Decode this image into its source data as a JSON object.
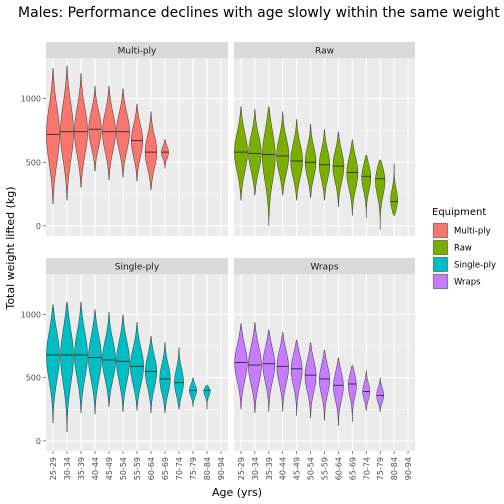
{
  "chart_data": {
    "type": "violin",
    "title": "Males: Performance declines with age slowly within the same weight group",
    "xlabel": "Age (yrs)",
    "ylabel": "Total weight lifted (kg)",
    "categories": [
      "25-29",
      "30-34",
      "35-39",
      "40-44",
      "45-49",
      "50-54",
      "55-59",
      "60-64",
      "65-69",
      "70-74",
      "75-79",
      "80-84",
      "90-94"
    ],
    "ylim": [
      -80,
      1320
    ],
    "yticks": [
      0,
      500,
      1000
    ],
    "grid": true,
    "legend": {
      "title": "Equipment",
      "position": "right",
      "entries": [
        {
          "label": "Multi-ply",
          "color": "#F8766D"
        },
        {
          "label": "Raw",
          "color": "#7CAE00"
        },
        {
          "label": "Single-ply",
          "color": "#00BFC4"
        },
        {
          "label": "Wraps",
          "color": "#C77CFF"
        }
      ]
    },
    "panels": [
      {
        "name": "Multi-ply",
        "color": "#F8766D",
        "violins": [
          {
            "category": "25-29",
            "min": 170,
            "max": 1240,
            "median": 720
          },
          {
            "category": "30-34",
            "min": 200,
            "max": 1260,
            "median": 740
          },
          {
            "category": "35-39",
            "min": 300,
            "max": 1200,
            "median": 740
          },
          {
            "category": "40-44",
            "min": 430,
            "max": 1100,
            "median": 760
          },
          {
            "category": "45-49",
            "min": 360,
            "max": 1100,
            "median": 740
          },
          {
            "category": "50-54",
            "min": 380,
            "max": 1080,
            "median": 740
          },
          {
            "category": "55-59",
            "min": 350,
            "max": 960,
            "median": 670
          },
          {
            "category": "60-64",
            "min": 280,
            "max": 900,
            "median": 580
          },
          {
            "category": "65-69",
            "min": 450,
            "max": 680,
            "median": 580
          }
        ]
      },
      {
        "name": "Raw",
        "color": "#7CAE00",
        "violins": [
          {
            "category": "25-29",
            "min": 200,
            "max": 940,
            "median": 580
          },
          {
            "category": "30-34",
            "min": 240,
            "max": 920,
            "median": 570
          },
          {
            "category": "35-39",
            "min": 0,
            "max": 940,
            "median": 560
          },
          {
            "category": "40-44",
            "min": 240,
            "max": 900,
            "median": 550
          },
          {
            "category": "45-49",
            "min": 200,
            "max": 840,
            "median": 510
          },
          {
            "category": "50-54",
            "min": 220,
            "max": 800,
            "median": 500
          },
          {
            "category": "55-59",
            "min": 200,
            "max": 760,
            "median": 480
          },
          {
            "category": "60-64",
            "min": 150,
            "max": 740,
            "median": 470
          },
          {
            "category": "65-69",
            "min": 80,
            "max": 680,
            "median": 420
          },
          {
            "category": "70-74",
            "min": 60,
            "max": 560,
            "median": 390
          },
          {
            "category": "75-79",
            "min": -30,
            "max": 520,
            "median": 370
          },
          {
            "category": "80-84",
            "min": 80,
            "max": 490,
            "median": 190
          }
        ]
      },
      {
        "name": "Single-ply",
        "color": "#00BFC4",
        "violins": [
          {
            "category": "25-29",
            "min": 140,
            "max": 1080,
            "median": 680
          },
          {
            "category": "30-34",
            "min": 70,
            "max": 1100,
            "median": 680
          },
          {
            "category": "35-39",
            "min": 220,
            "max": 1100,
            "median": 680
          },
          {
            "category": "40-44",
            "min": 210,
            "max": 1040,
            "median": 660
          },
          {
            "category": "45-49",
            "min": 270,
            "max": 1020,
            "median": 640
          },
          {
            "category": "50-54",
            "min": 230,
            "max": 1000,
            "median": 630
          },
          {
            "category": "55-59",
            "min": 240,
            "max": 940,
            "median": 590
          },
          {
            "category": "60-64",
            "min": 220,
            "max": 830,
            "median": 550
          },
          {
            "category": "65-69",
            "min": 220,
            "max": 780,
            "median": 490
          },
          {
            "category": "70-74",
            "min": 250,
            "max": 740,
            "median": 460
          },
          {
            "category": "75-79",
            "min": 270,
            "max": 500,
            "median": 400
          },
          {
            "category": "80-84",
            "min": 250,
            "max": 440,
            "median": 400
          }
        ]
      },
      {
        "name": "Wraps",
        "color": "#C77CFF",
        "violins": [
          {
            "category": "25-29",
            "min": 250,
            "max": 930,
            "median": 620
          },
          {
            "category": "30-34",
            "min": 220,
            "max": 940,
            "median": 600
          },
          {
            "category": "35-39",
            "min": 230,
            "max": 880,
            "median": 610
          },
          {
            "category": "40-44",
            "min": 230,
            "max": 860,
            "median": 590
          },
          {
            "category": "45-49",
            "min": 200,
            "max": 800,
            "median": 570
          },
          {
            "category": "50-54",
            "min": 180,
            "max": 780,
            "median": 520
          },
          {
            "category": "55-59",
            "min": 160,
            "max": 720,
            "median": 490
          },
          {
            "category": "60-64",
            "min": 120,
            "max": 660,
            "median": 440
          },
          {
            "category": "65-69",
            "min": 150,
            "max": 600,
            "median": 450
          },
          {
            "category": "70-74",
            "min": 240,
            "max": 560,
            "median": 390
          },
          {
            "category": "75-79",
            "min": 230,
            "max": 500,
            "median": 360
          }
        ]
      }
    ]
  }
}
